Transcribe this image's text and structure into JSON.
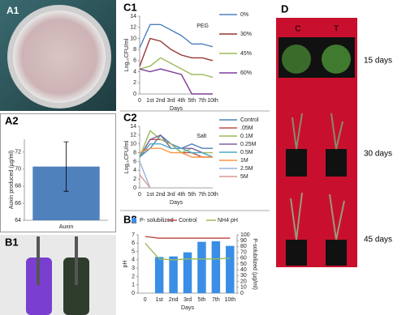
{
  "panels": {
    "a1": "A1",
    "a2": "A2",
    "b1": "B1",
    "b2": "B2",
    "c1": "C1",
    "c2": "C2",
    "d": "D"
  },
  "photo_d": {
    "columns": [
      "C",
      "T"
    ],
    "stages": [
      "15 days",
      "30 days",
      "45 days"
    ]
  },
  "chart_data": [
    {
      "type": "bar",
      "ylabel": "Auxin produced (µg/ml)",
      "categories": [
        "Auxin"
      ],
      "values": [
        70.3
      ],
      "errors": [
        2.9
      ],
      "color": "#4f81bd",
      "ylim": [
        64,
        73.5
      ],
      "yticks": [
        64,
        66,
        68,
        70,
        72
      ]
    },
    {
      "type": "line",
      "ylabel": "Log₁₀CFU/ml",
      "xlabel": "Days",
      "annotation": "PEG",
      "categories": [
        "0",
        "1st",
        "2nd",
        "3rd",
        "4th",
        "5th",
        "7th",
        "10th"
      ],
      "ylim": [
        0,
        14
      ],
      "yticks": [
        0,
        2,
        4,
        6,
        8,
        10,
        12,
        14
      ],
      "series": [
        {
          "name": "0%",
          "color": "#4f81bd",
          "values": [
            8.3,
            12.5,
            12.5,
            11.5,
            10.5,
            9,
            9,
            8.5
          ]
        },
        {
          "name": "30%",
          "color": "#953735",
          "values": [
            5,
            10,
            9.5,
            8,
            7,
            6.5,
            6.5,
            6
          ]
        },
        {
          "name": "45%",
          "color": "#9bbb59",
          "values": [
            4.5,
            5,
            6.5,
            5.5,
            4.5,
            3.5,
            3.5,
            3
          ]
        },
        {
          "name": "60%",
          "color": "#7f3f98",
          "values": [
            4.5,
            4,
            4.5,
            4,
            3.5,
            0,
            0,
            0
          ]
        }
      ]
    },
    {
      "type": "line",
      "ylabel": "Log₁₀CFU/ml",
      "xlabel": "Days",
      "annotation": "Salt",
      "categories": [
        "0",
        "1st",
        "2nd",
        "3rd",
        "4th",
        "5th",
        "7th",
        "10th"
      ],
      "ylim": [
        0,
        14
      ],
      "yticks": [
        0,
        2,
        4,
        6,
        8,
        10,
        12,
        14
      ],
      "series": [
        {
          "name": "Control",
          "color": "#4f81bd",
          "values": [
            7,
            9,
            12,
            10,
            9,
            10,
            9,
            9
          ]
        },
        {
          "name": ".05M",
          "color": "#c0504d",
          "values": [
            7,
            11,
            11,
            10,
            8,
            8,
            7,
            7
          ]
        },
        {
          "name": "0.1M",
          "color": "#9bbb59",
          "values": [
            7,
            13,
            11,
            10,
            8,
            9,
            8,
            8
          ]
        },
        {
          "name": "0.25M",
          "color": "#8064a2",
          "values": [
            7,
            11,
            12,
            9,
            9,
            9,
            8,
            7
          ]
        },
        {
          "name": "0.5M",
          "color": "#4bacc6",
          "values": [
            7,
            10,
            10,
            9,
            9,
            8,
            8,
            7
          ]
        },
        {
          "name": "1M",
          "color": "#f79646",
          "values": [
            8,
            9,
            9,
            8,
            8,
            7,
            7,
            7
          ]
        },
        {
          "name": "2.5M",
          "color": "#95b3d7",
          "values": [
            6,
            0,
            null,
            null,
            null,
            null,
            null,
            null
          ]
        },
        {
          "name": "5M",
          "color": "#d99694",
          "values": [
            3,
            0,
            null,
            null,
            null,
            null,
            null,
            null
          ]
        }
      ]
    },
    {
      "type": "combo",
      "ylabel": "pH",
      "y2label": "P-solubilized (µg/ml)",
      "xlabel": "Days",
      "categories": [
        "0",
        "1st",
        "2nd",
        "3rd",
        "5th",
        "7th",
        "10th"
      ],
      "ylim": [
        0,
        7
      ],
      "yticks": [
        0,
        1,
        2,
        3,
        4,
        5,
        6,
        7
      ],
      "y2lim": [
        0,
        100
      ],
      "y2ticks": [
        0,
        10,
        20,
        30,
        40,
        50,
        60,
        70,
        80,
        90,
        100
      ],
      "series": [
        {
          "name": "P- solubilized",
          "color": "#3a8ee6",
          "kind": "bar",
          "axis": "y2",
          "values": [
            null,
            62,
            63,
            70,
            88,
            89,
            81
          ]
        },
        {
          "name": "Control",
          "color": "#c0504d",
          "kind": "line",
          "values": [
            6.8,
            6.6,
            6.6,
            6.6,
            6.6,
            6.6,
            6.6
          ]
        },
        {
          "name": "NH4 pH",
          "color": "#9bbb59",
          "kind": "line",
          "values": [
            6,
            4.1,
            4,
            4.1,
            4.1,
            4.1,
            4.2
          ]
        }
      ]
    }
  ]
}
